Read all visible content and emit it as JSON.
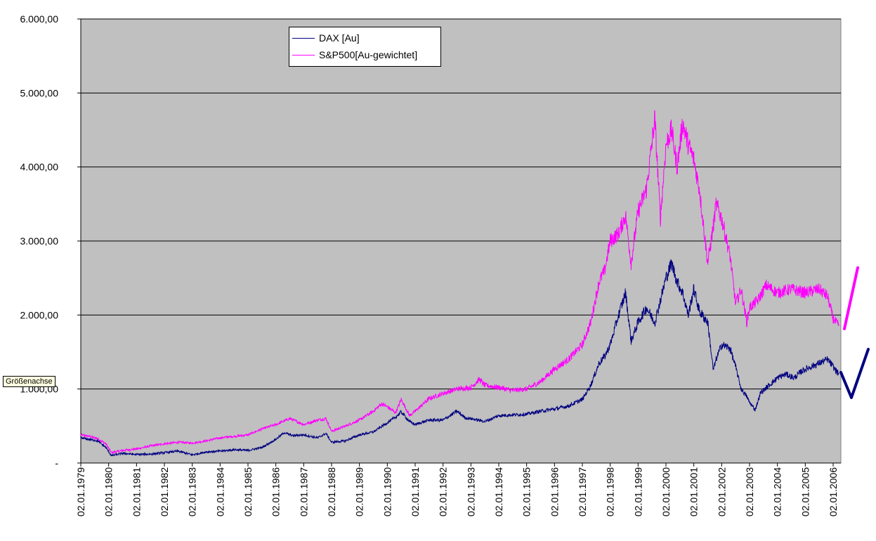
{
  "colors": {
    "plot_background": "#c0c0c0",
    "gridline": "#000000",
    "dax": "#000080",
    "sp500": "#ff00ff"
  },
  "tooltip": {
    "label": "Größenachse"
  },
  "chart_data": {
    "type": "line",
    "title": "",
    "xlabel": "",
    "ylabel": "",
    "ylim": [
      0,
      6000
    ],
    "y_ticks": [
      {
        "value": 0,
        "label": "-"
      },
      {
        "value": 1000,
        "label": "1.000,00"
      },
      {
        "value": 2000,
        "label": "2.000,00"
      },
      {
        "value": 3000,
        "label": "3.000,00"
      },
      {
        "value": 4000,
        "label": "4.000,00"
      },
      {
        "value": 5000,
        "label": "5.000,00"
      },
      {
        "value": 6000,
        "label": "6.000,00"
      }
    ],
    "x_tick_labels": [
      "02.01.1979",
      "02.01.1980",
      "02.01.1981",
      "02.01.1982",
      "02.01.1983",
      "02.01.1984",
      "02.01.1985",
      "02.01.1986",
      "02.01.1987",
      "02.01.1988",
      "02.01.1989",
      "02.01.1990",
      "02.01.1991",
      "02.01.1992",
      "02.01.1993",
      "02.01.1994",
      "02.01.1995",
      "02.01.1996",
      "02.01.1997",
      "02.01.1998",
      "02.01.1999",
      "02.01.2000",
      "02.01.2001",
      "02.01.2002",
      "02.01.2003",
      "02.01.2004",
      "02.01.2005",
      "02.01.2006"
    ],
    "x_range": [
      1979.0,
      2006.2
    ],
    "grid": "horizontal",
    "legend": "top-left",
    "series": [
      {
        "name": "DAX [Au]",
        "color": "#000080",
        "points": [
          [
            1979.0,
            340
          ],
          [
            1979.3,
            320
          ],
          [
            1979.6,
            300
          ],
          [
            1979.9,
            210
          ],
          [
            1980.1,
            100
          ],
          [
            1980.5,
            130
          ],
          [
            1981.0,
            115
          ],
          [
            1981.5,
            120
          ],
          [
            1982.0,
            140
          ],
          [
            1982.5,
            160
          ],
          [
            1983.0,
            110
          ],
          [
            1983.5,
            150
          ],
          [
            1984.0,
            160
          ],
          [
            1984.5,
            180
          ],
          [
            1985.0,
            170
          ],
          [
            1985.5,
            210
          ],
          [
            1986.0,
            320
          ],
          [
            1986.3,
            410
          ],
          [
            1986.6,
            370
          ],
          [
            1987.0,
            380
          ],
          [
            1987.5,
            340
          ],
          [
            1987.8,
            400
          ],
          [
            1988.0,
            280
          ],
          [
            1988.5,
            300
          ],
          [
            1989.0,
            380
          ],
          [
            1989.5,
            420
          ],
          [
            1989.9,
            520
          ],
          [
            1990.3,
            620
          ],
          [
            1990.5,
            690
          ],
          [
            1990.8,
            560
          ],
          [
            1991.0,
            520
          ],
          [
            1991.5,
            580
          ],
          [
            1992.0,
            580
          ],
          [
            1992.5,
            700
          ],
          [
            1992.8,
            610
          ],
          [
            1993.0,
            600
          ],
          [
            1993.5,
            560
          ],
          [
            1994.0,
            640
          ],
          [
            1994.5,
            650
          ],
          [
            1995.0,
            660
          ],
          [
            1995.5,
            700
          ],
          [
            1996.0,
            730
          ],
          [
            1996.5,
            770
          ],
          [
            1997.0,
            860
          ],
          [
            1997.3,
            1050
          ],
          [
            1997.6,
            1350
          ],
          [
            1997.8,
            1440
          ],
          [
            1998.0,
            1600
          ],
          [
            1998.3,
            2000
          ],
          [
            1998.55,
            2300
          ],
          [
            1998.75,
            1650
          ],
          [
            1999.0,
            1900
          ],
          [
            1999.3,
            2100
          ],
          [
            1999.6,
            1900
          ],
          [
            1999.8,
            2200
          ],
          [
            2000.0,
            2500
          ],
          [
            2000.2,
            2700
          ],
          [
            2000.4,
            2450
          ],
          [
            2000.6,
            2300
          ],
          [
            2000.8,
            2000
          ],
          [
            2001.0,
            2350
          ],
          [
            2001.2,
            2050
          ],
          [
            2001.5,
            1900
          ],
          [
            2001.7,
            1250
          ],
          [
            2001.8,
            1400
          ],
          [
            2002.0,
            1600
          ],
          [
            2002.3,
            1550
          ],
          [
            2002.5,
            1300
          ],
          [
            2002.7,
            1000
          ],
          [
            2002.9,
            900
          ],
          [
            2003.0,
            820
          ],
          [
            2003.2,
            720
          ],
          [
            2003.4,
            950
          ],
          [
            2003.7,
            1050
          ],
          [
            2004.0,
            1150
          ],
          [
            2004.3,
            1200
          ],
          [
            2004.6,
            1150
          ],
          [
            2004.9,
            1250
          ],
          [
            2005.2,
            1300
          ],
          [
            2005.5,
            1350
          ],
          [
            2005.8,
            1400
          ],
          [
            2006.0,
            1300
          ],
          [
            2006.2,
            1200
          ]
        ]
      },
      {
        "name": "S&P500[Au-gewichtet]",
        "color": "#ff00ff",
        "points": [
          [
            1979.0,
            380
          ],
          [
            1979.3,
            360
          ],
          [
            1979.6,
            330
          ],
          [
            1979.9,
            260
          ],
          [
            1980.1,
            140
          ],
          [
            1980.5,
            170
          ],
          [
            1981.0,
            190
          ],
          [
            1981.5,
            230
          ],
          [
            1982.0,
            260
          ],
          [
            1982.5,
            280
          ],
          [
            1983.0,
            270
          ],
          [
            1983.5,
            300
          ],
          [
            1984.0,
            340
          ],
          [
            1984.5,
            360
          ],
          [
            1985.0,
            380
          ],
          [
            1985.5,
            460
          ],
          [
            1986.0,
            520
          ],
          [
            1986.5,
            600
          ],
          [
            1987.0,
            520
          ],
          [
            1987.5,
            580
          ],
          [
            1987.8,
            600
          ],
          [
            1988.0,
            430
          ],
          [
            1988.5,
            500
          ],
          [
            1989.0,
            580
          ],
          [
            1989.5,
            700
          ],
          [
            1989.8,
            800
          ],
          [
            1990.0,
            760
          ],
          [
            1990.3,
            680
          ],
          [
            1990.5,
            860
          ],
          [
            1990.8,
            640
          ],
          [
            1991.0,
            700
          ],
          [
            1991.5,
            870
          ],
          [
            1992.0,
            940
          ],
          [
            1992.5,
            1000
          ],
          [
            1993.0,
            1020
          ],
          [
            1993.3,
            1130
          ],
          [
            1993.5,
            1050
          ],
          [
            1994.0,
            1020
          ],
          [
            1994.5,
            980
          ],
          [
            1995.0,
            1000
          ],
          [
            1995.5,
            1100
          ],
          [
            1996.0,
            1270
          ],
          [
            1996.5,
            1400
          ],
          [
            1997.0,
            1600
          ],
          [
            1997.3,
            1900
          ],
          [
            1997.6,
            2450
          ],
          [
            1997.8,
            2600
          ],
          [
            1998.0,
            3000
          ],
          [
            1998.3,
            3100
          ],
          [
            1998.55,
            3350
          ],
          [
            1998.75,
            2700
          ],
          [
            1999.0,
            3400
          ],
          [
            1999.3,
            3700
          ],
          [
            1999.6,
            4650
          ],
          [
            1999.8,
            3300
          ],
          [
            2000.0,
            4300
          ],
          [
            2000.2,
            4500
          ],
          [
            2000.4,
            4000
          ],
          [
            2000.6,
            4600
          ],
          [
            2000.8,
            4300
          ],
          [
            2001.0,
            4100
          ],
          [
            2001.2,
            3700
          ],
          [
            2001.5,
            2700
          ],
          [
            2001.7,
            3200
          ],
          [
            2001.8,
            3500
          ],
          [
            2002.0,
            3300
          ],
          [
            2002.3,
            2800
          ],
          [
            2002.5,
            2150
          ],
          [
            2002.7,
            2350
          ],
          [
            2002.9,
            1900
          ],
          [
            2003.0,
            2100
          ],
          [
            2003.3,
            2200
          ],
          [
            2003.6,
            2400
          ],
          [
            2004.0,
            2300
          ],
          [
            2004.5,
            2350
          ],
          [
            2005.0,
            2300
          ],
          [
            2005.5,
            2350
          ],
          [
            2005.8,
            2250
          ],
          [
            2006.0,
            1950
          ],
          [
            2006.2,
            1850
          ]
        ]
      }
    ],
    "annotations": [
      {
        "type": "check-mark",
        "color": "#000080"
      },
      {
        "type": "up-slash",
        "color": "#ff00ff"
      }
    ]
  }
}
